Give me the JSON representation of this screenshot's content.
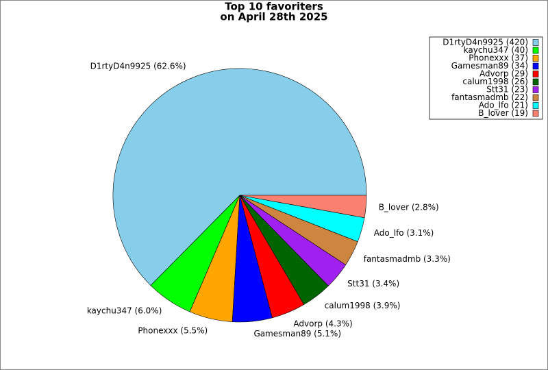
{
  "chart_data": {
    "type": "pie",
    "title": "Top 10 favoriters",
    "subtitle": "on April 28th 2025",
    "categories": [
      "D1rtyD4n9925 (420)",
      "kaychu347 (40)",
      "Phonexxx (37)",
      "Gamesman89 (34)",
      "Advorp (29)",
      "calum1998 (26)",
      "Stt31 (23)",
      "fantasmadmb (22)",
      "Ado_lfo (21)",
      "B_lover (19)"
    ],
    "values": [
      420,
      40,
      37,
      34,
      29,
      26,
      23,
      22,
      21,
      19
    ],
    "value_labels": [
      "D1rtyD4n9925 (62.6%)",
      "kaychu347 (6.0%)",
      "Phonexxx (5.5%)",
      "Gamesman89 (5.1%)",
      "Advorp (4.3%)",
      "calum1998 (3.9%)",
      "Stt31 (3.4%)",
      "fantasmadmb (3.3%)",
      "Ado_lfo (3.1%)",
      "B_lover (2.8%)"
    ],
    "colors": [
      "#87ceeb",
      "#00ff00",
      "#ffa500",
      "#0000ff",
      "#ff0000",
      "#006400",
      "#a020f0",
      "#cd853f",
      "#00ffff",
      "#fa8072"
    ],
    "legend": "upper right"
  }
}
